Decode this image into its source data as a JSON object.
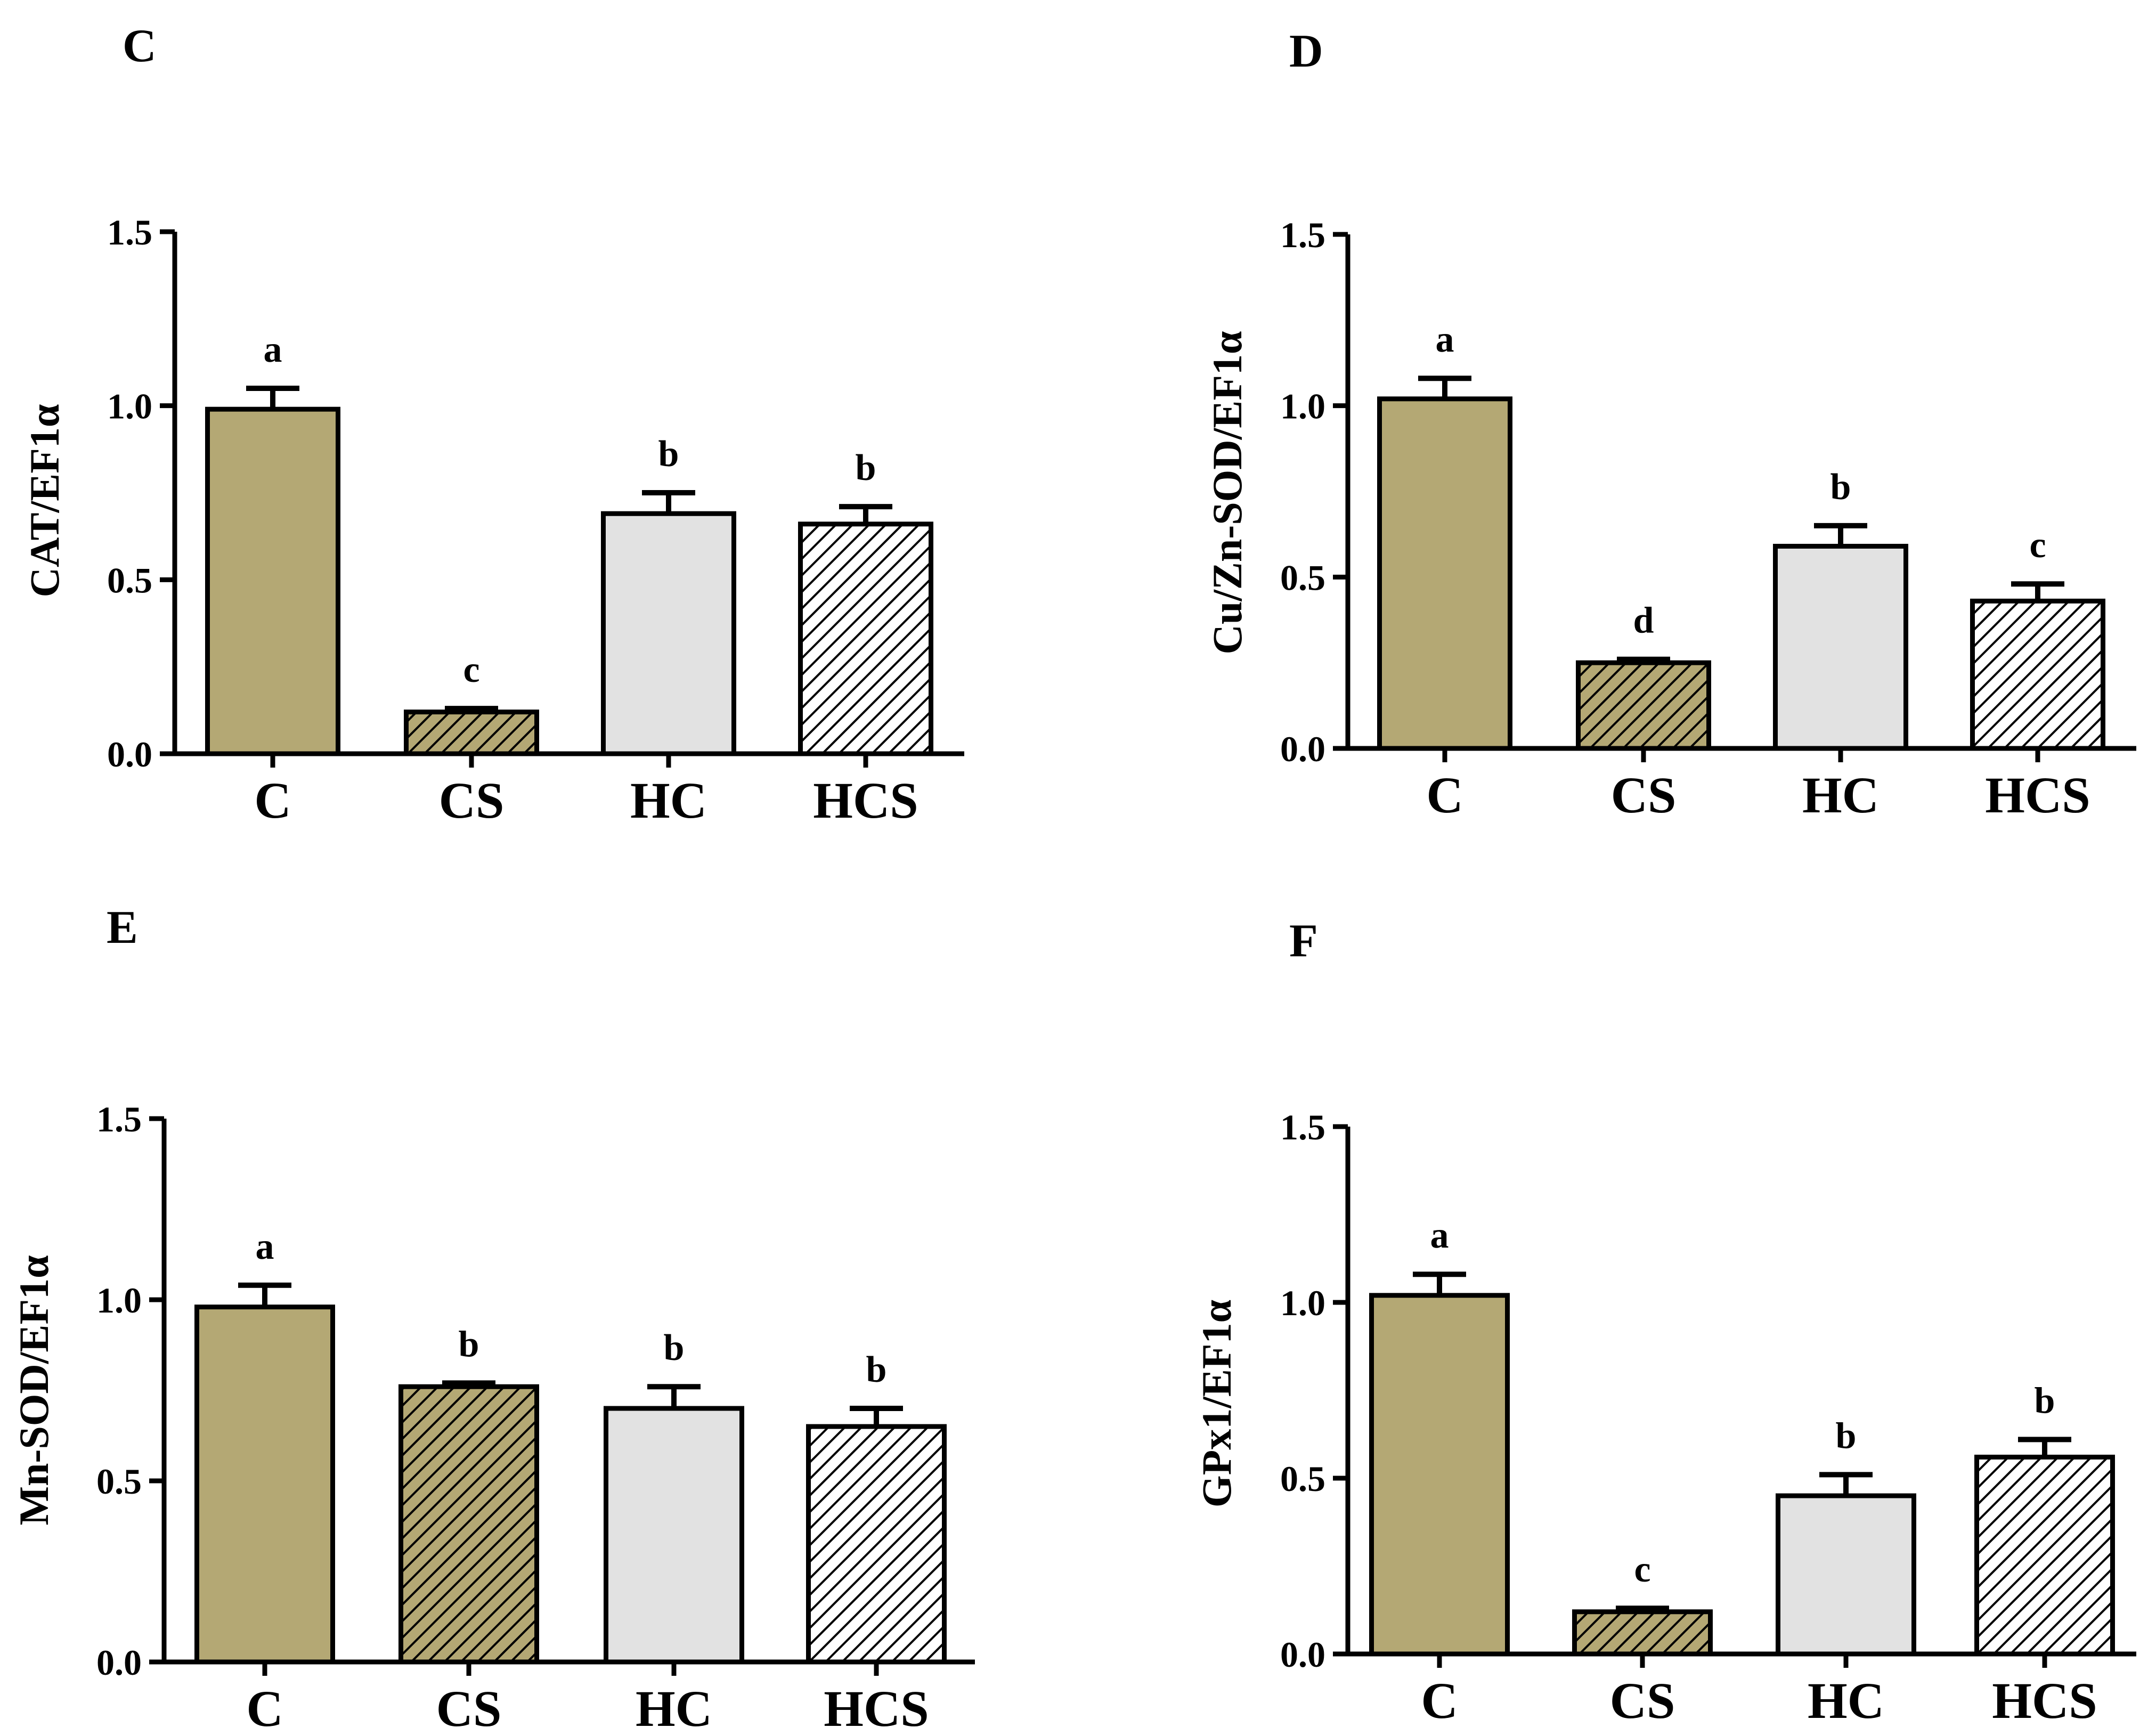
{
  "legend_style": {
    "C": {
      "fill": "#b4a874",
      "hatch": false
    },
    "CS": {
      "fill": "#b4a874",
      "hatch": true
    },
    "HC": {
      "fill": "#e2e2e2",
      "hatch": false
    },
    "HCS": {
      "fill": "#ffffff",
      "hatch": true
    }
  },
  "chart_data": [
    {
      "panel": "C",
      "type": "bar",
      "ylabel": "CAT/EF1α",
      "categories": [
        "C",
        "CS",
        "HC",
        "HCS"
      ],
      "values": [
        0.99,
        0.12,
        0.69,
        0.66
      ],
      "errors": [
        0.06,
        0.01,
        0.06,
        0.05
      ],
      "letters": [
        "a",
        "c",
        "b",
        "b"
      ],
      "ylim": [
        0,
        1.5
      ],
      "yticks": [
        "0.0",
        "0.5",
        "1.0",
        "1.5"
      ]
    },
    {
      "panel": "D",
      "type": "bar",
      "ylabel": "Cu/Zn-SOD/EF1α",
      "categories": [
        "C",
        "CS",
        "HC",
        "HCS"
      ],
      "values": [
        1.02,
        0.25,
        0.59,
        0.43
      ],
      "errors": [
        0.06,
        0.01,
        0.06,
        0.05
      ],
      "letters": [
        "a",
        "d",
        "b",
        "c"
      ],
      "ylim": [
        0,
        1.5
      ],
      "yticks": [
        "0.0",
        "0.5",
        "1.0",
        "1.5"
      ]
    },
    {
      "panel": "E",
      "type": "bar",
      "ylabel": "Mn-SOD/EF1α",
      "categories": [
        "C",
        "CS",
        "HC",
        "HCS"
      ],
      "values": [
        0.98,
        0.76,
        0.7,
        0.65
      ],
      "errors": [
        0.06,
        0.01,
        0.06,
        0.05
      ],
      "letters": [
        "a",
        "b",
        "b",
        "b"
      ],
      "ylim": [
        0,
        1.5
      ],
      "yticks": [
        "0.0",
        "0.5",
        "1.0",
        "1.5"
      ]
    },
    {
      "panel": "F",
      "type": "bar",
      "ylabel": "GPx1/EF1α",
      "categories": [
        "C",
        "CS",
        "HC",
        "HCS"
      ],
      "values": [
        1.02,
        0.12,
        0.45,
        0.56
      ],
      "errors": [
        0.06,
        0.01,
        0.06,
        0.05
      ],
      "letters": [
        "a",
        "c",
        "b",
        "b"
      ],
      "ylim": [
        0,
        1.5
      ],
      "yticks": [
        "0.0",
        "0.5",
        "1.0",
        "1.5"
      ]
    }
  ]
}
